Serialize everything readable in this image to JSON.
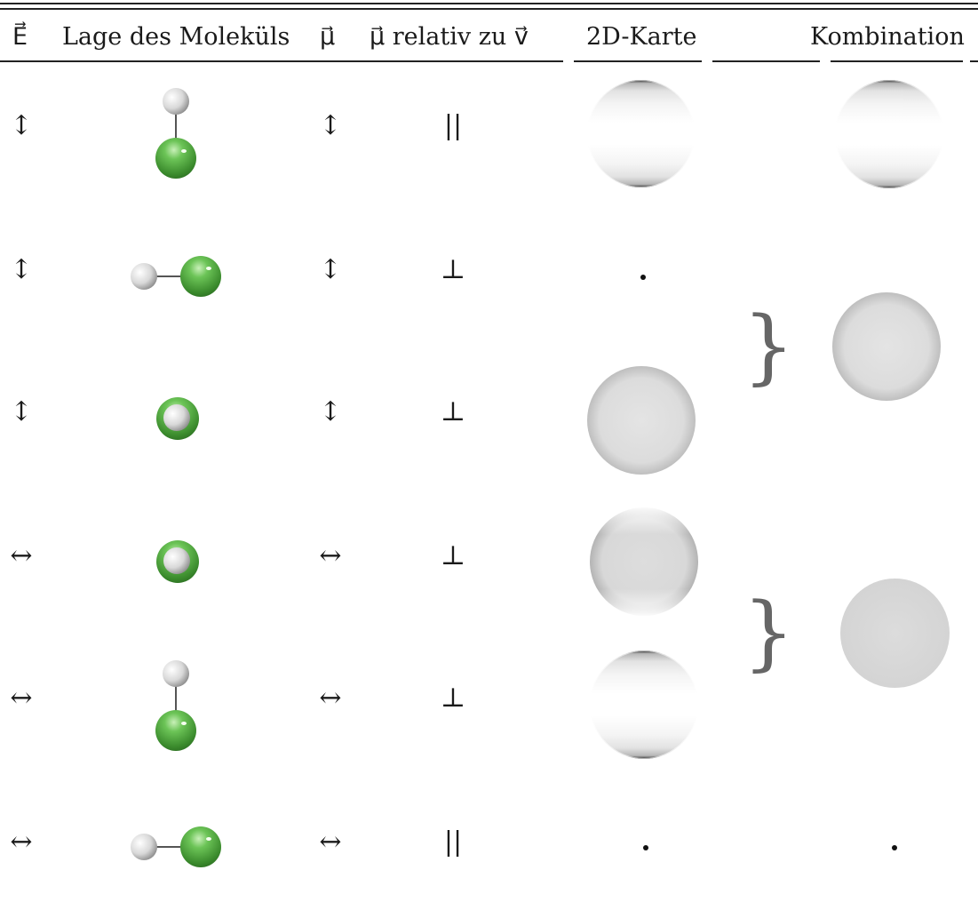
{
  "header": {
    "col_E": "E⃗",
    "col_lage": "Lage des Moleküls",
    "col_mu": "μ⃗",
    "col_mu_rel": "μ⃗ relativ zu v⃗",
    "col_map": "2D-Karte",
    "col_kombination": "Kombination"
  },
  "rows": [
    {
      "E": "↕",
      "mu": "↕",
      "relation": "||",
      "molecule": "vertical",
      "map": "bright-top-bottom",
      "combination": "bright-top-bottom"
    },
    {
      "E": "↕",
      "mu": "↕",
      "relation": "⊥",
      "molecule": "horizontal",
      "map": "dot"
    },
    {
      "E": "↕",
      "mu": "↕",
      "relation": "⊥",
      "molecule": "end-on",
      "map": "dark-sides"
    },
    {
      "E": "↔",
      "mu": "↔",
      "relation": "⊥",
      "molecule": "end-on",
      "map": "dark-right"
    },
    {
      "E": "↔",
      "mu": "↔",
      "relation": "⊥",
      "molecule": "vertical",
      "map": "bright-top-bottom"
    },
    {
      "E": "↔",
      "mu": "↔",
      "relation": "||",
      "molecule": "horizontal",
      "map": "dot",
      "combination": "dot"
    }
  ],
  "combinations": [
    {
      "brace": "}",
      "map": "dark-sides"
    },
    {
      "brace": "}",
      "map": "dark-ring"
    }
  ],
  "colors": {
    "chlorine": "#5bbf45",
    "hydrogen": "#e6e6e6",
    "rule": "#222222"
  }
}
